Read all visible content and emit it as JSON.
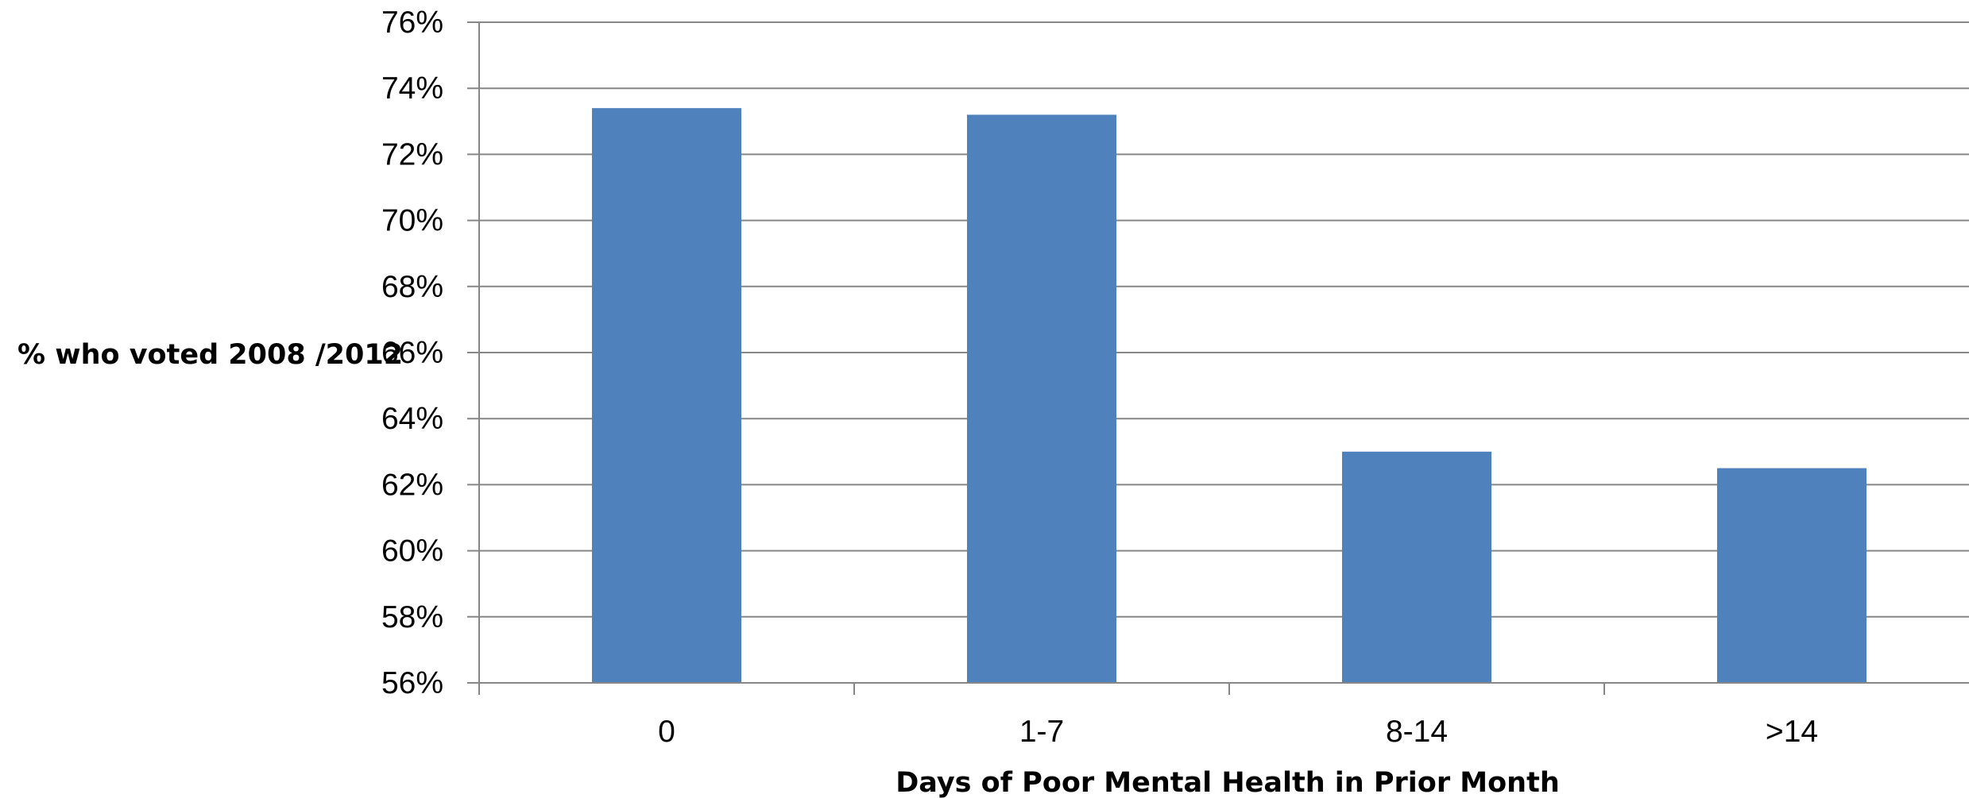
{
  "chart_data": {
    "type": "bar",
    "title": "",
    "xlabel": "Days of Poor Mental Health in Prior Month",
    "ylabel": "% who voted 2008 /2012",
    "categories": [
      "0",
      "1-7",
      "8-14",
      ">14"
    ],
    "series": [
      {
        "values": [
          73.4,
          73.2,
          63.0,
          62.5
        ]
      }
    ],
    "ylim": [
      56,
      76
    ],
    "y_ticks": [
      56,
      58,
      60,
      62,
      64,
      66,
      68,
      70,
      72,
      74,
      76
    ],
    "y_tick_labels": [
      "56%",
      "58%",
      "60%",
      "62%",
      "64%",
      "66%",
      "68%",
      "70%",
      "72%",
      "74%",
      "76%"
    ],
    "grid": true,
    "legend": "none",
    "colors": {
      "bar": "#4F81BD",
      "grid": "#868686",
      "axis": "#868686",
      "text": "#000000"
    }
  }
}
